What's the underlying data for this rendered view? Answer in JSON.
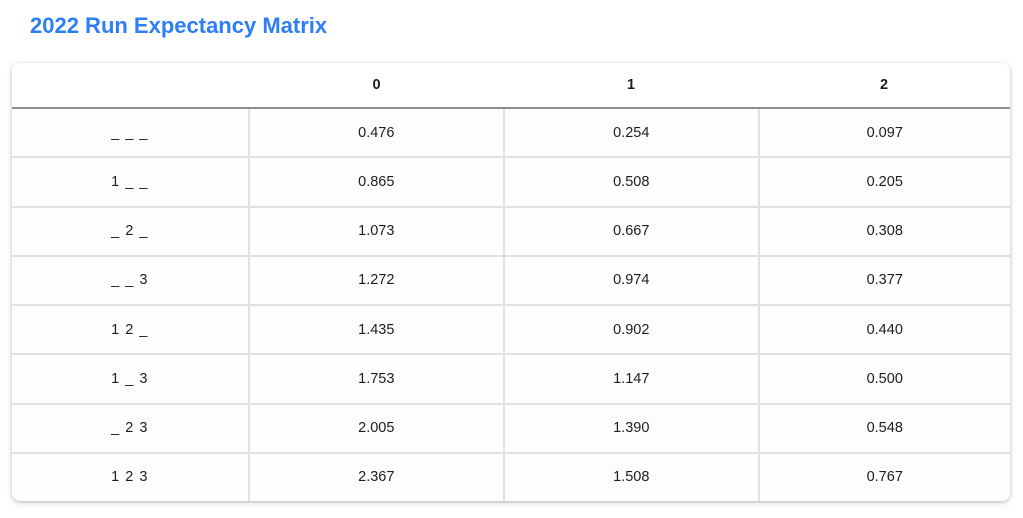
{
  "colors": {
    "title_blue": "#2d7ef7",
    "grid_line": "#e1e1e1",
    "header_underline": "#8e8e8e",
    "text": "#1c1d1f",
    "card_background": "#ffffff"
  },
  "chart_data": {
    "type": "table",
    "title": "2022 Run Expectancy Matrix",
    "columns": [
      "0",
      "1",
      "2"
    ],
    "rows": [
      {
        "label": "_ _ _",
        "values": [
          "0.476",
          "0.254",
          "0.097"
        ]
      },
      {
        "label": "1 _ _",
        "values": [
          "0.865",
          "0.508",
          "0.205"
        ]
      },
      {
        "label": "_ 2 _",
        "values": [
          "1.073",
          "0.667",
          "0.308"
        ]
      },
      {
        "label": "_ _ 3",
        "values": [
          "1.272",
          "0.974",
          "0.377"
        ]
      },
      {
        "label": "1 2 _",
        "values": [
          "1.435",
          "0.902",
          "0.440"
        ]
      },
      {
        "label": "1 _ 3",
        "values": [
          "1.753",
          "1.147",
          "0.500"
        ]
      },
      {
        "label": "_ 2 3",
        "values": [
          "2.005",
          "1.390",
          "0.548"
        ]
      },
      {
        "label": "1 2 3",
        "values": [
          "2.367",
          "1.508",
          "0.767"
        ]
      }
    ]
  }
}
